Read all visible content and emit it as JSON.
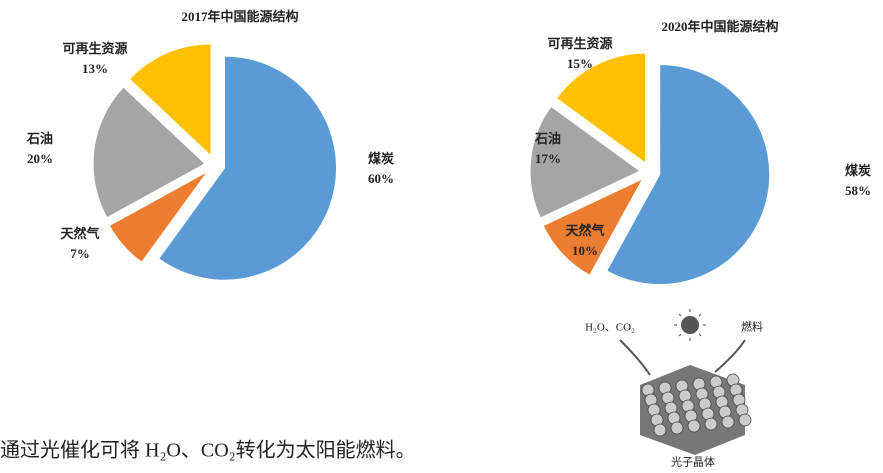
{
  "chart_data": [
    {
      "type": "pie",
      "title": "2017年中国能源结构",
      "categories": [
        "煤炭",
        "天然气",
        "石油",
        "可再生资源"
      ],
      "values": [
        60,
        7,
        20,
        13
      ],
      "value_labels": [
        "60%",
        "7%",
        "20%",
        "13%"
      ],
      "colors": [
        "#5b9bd5",
        "#ed7d31",
        "#a5a5a5",
        "#ffc000"
      ]
    },
    {
      "type": "pie",
      "title": "2020年中国能源结构",
      "categories": [
        "煤炭",
        "天然气",
        "石油",
        "可再生资源"
      ],
      "values": [
        58,
        10,
        17,
        15
      ],
      "value_labels": [
        "58%",
        "10%",
        "17%",
        "15%"
      ],
      "colors": [
        "#5b9bd5",
        "#ed7d31",
        "#a5a5a5",
        "#ffc000"
      ]
    }
  ],
  "diagram": {
    "input": "H₂O、CO₂",
    "output": "燃料",
    "material": "光子晶体"
  },
  "text": "通过光催化可将 H₂O、CO₂转化为太阳能燃料。"
}
